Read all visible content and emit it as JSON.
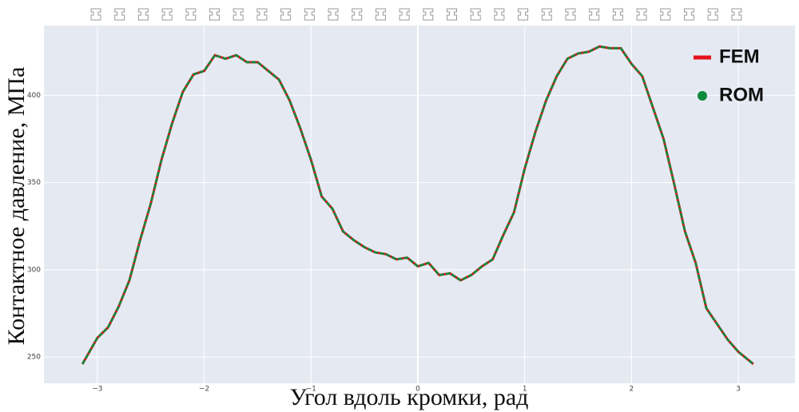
{
  "chart_data": {
    "type": "line",
    "x_label": "Угол вдоль кромки, рад",
    "y_label": "Контактное давление, МПа",
    "x": [
      -3.14,
      -3.0,
      -2.9,
      -2.8,
      -2.7,
      -2.6,
      -2.5,
      -2.4,
      -2.3,
      -2.2,
      -2.1,
      -2.0,
      -1.9,
      -1.8,
      -1.7,
      -1.6,
      -1.5,
      -1.4,
      -1.3,
      -1.2,
      -1.1,
      -1.0,
      -0.9,
      -0.8,
      -0.7,
      -0.6,
      -0.5,
      -0.4,
      -0.3,
      -0.2,
      -0.1,
      0.0,
      0.1,
      0.2,
      0.3,
      0.4,
      0.5,
      0.6,
      0.7,
      0.8,
      0.9,
      1.0,
      1.1,
      1.2,
      1.3,
      1.4,
      1.5,
      1.6,
      1.7,
      1.8,
      1.9,
      2.0,
      2.1,
      2.2,
      2.3,
      2.4,
      2.5,
      2.6,
      2.7,
      2.8,
      2.9,
      3.0,
      3.14
    ],
    "series": [
      {
        "name": "FEM",
        "color": "#e3121b",
        "values": [
          246,
          261,
          267,
          279,
          294,
          317,
          338,
          363,
          384,
          402,
          412,
          414,
          423,
          421,
          423,
          419,
          419,
          414,
          409,
          397,
          381,
          363,
          342,
          335,
          322,
          317,
          313,
          310,
          309,
          306,
          307,
          302,
          304,
          297,
          298,
          294,
          297,
          302,
          306,
          320,
          333,
          358,
          379,
          397,
          411,
          421,
          424,
          425,
          428,
          427,
          427,
          418,
          411,
          393,
          375,
          349,
          322,
          304,
          278,
          269,
          260,
          253,
          246
        ]
      },
      {
        "name": "ROM",
        "color": "#0e8a3c",
        "values": [
          246,
          261,
          267,
          279,
          294,
          317,
          338,
          363,
          384,
          402,
          412,
          414,
          423,
          421,
          423,
          419,
          419,
          414,
          409,
          397,
          381,
          363,
          342,
          335,
          322,
          317,
          313,
          310,
          309,
          306,
          307,
          302,
          304,
          297,
          298,
          294,
          297,
          302,
          306,
          320,
          333,
          358,
          379,
          397,
          411,
          421,
          424,
          425,
          428,
          427,
          427,
          418,
          411,
          393,
          375,
          349,
          322,
          304,
          278,
          269,
          260,
          253,
          246
        ]
      }
    ],
    "xlim": [
      -3.5,
      3.53
    ],
    "ylim": [
      235,
      440
    ],
    "xticks": [
      {
        "value": -3,
        "label": "−3"
      },
      {
        "value": -2,
        "label": "−2"
      },
      {
        "value": -1,
        "label": "−1"
      },
      0,
      1,
      2,
      3
    ],
    "yticks": [
      250,
      300,
      350,
      400
    ],
    "grid": true,
    "legend": "upper right"
  }
}
